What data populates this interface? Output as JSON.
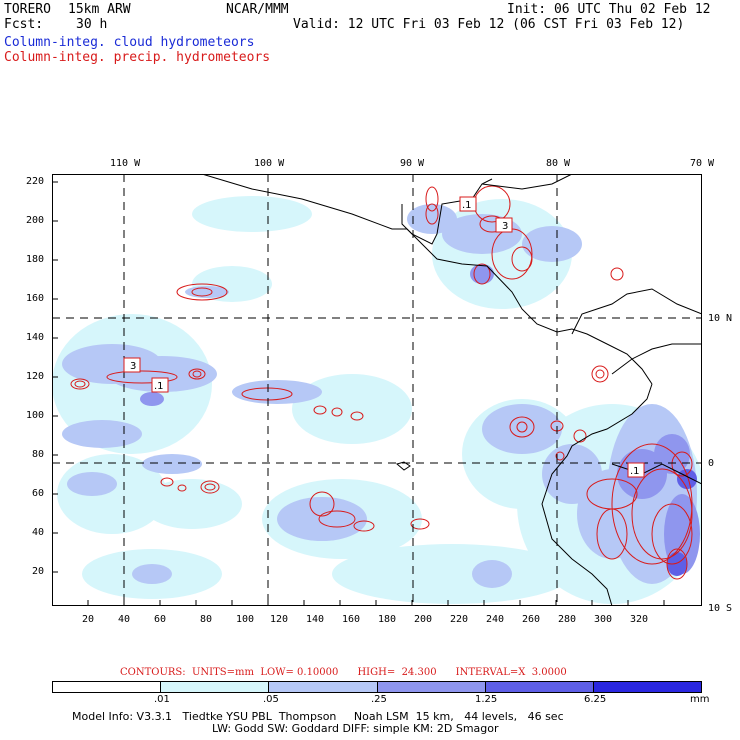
{
  "header": {
    "run_name": "TORERO",
    "model": "15km ARW",
    "org": "NCAR/MMM",
    "init": "Init: 06 UTC Thu 02 Feb 12",
    "fcst_label": "Fcst:",
    "fcst_value": "30 h",
    "valid": "Valid: 12 UTC Fri 03 Feb 12 (06 CST Fri 03 Feb 12)",
    "field_cloud": "Column-integ. cloud hydrometeors",
    "field_precip": "Column-integ. precip. hydrometeors"
  },
  "map": {
    "top_lon_labels": [
      "110 W",
      "100 W",
      "90 W",
      "80 W",
      "70 W"
    ],
    "right_lat_labels": [
      "10 N",
      "0",
      "10 S"
    ],
    "left_y_ticks": [
      "220",
      "200",
      "180",
      "160",
      "140",
      "120",
      "100",
      "80",
      "60",
      "40",
      "20"
    ],
    "bottom_x_ticks": [
      "20",
      "40",
      "60",
      "80",
      "100",
      "120",
      "140",
      "160",
      "180",
      "200",
      "220",
      "240",
      "260",
      "280",
      "300",
      "320"
    ],
    "contour_labels": [
      ".1",
      "3",
      ".1",
      "3",
      ".1"
    ]
  },
  "contours_info": "CONTOURS:  UNITS=mm  LOW= 0.10000      HIGH=  24.300      INTERVAL=X  3.0000",
  "legend": {
    "labels": [
      ".01",
      ".05",
      ".25",
      "1.25",
      "6.25",
      "mm"
    ],
    "colors": [
      "#ffffff",
      "#d6f6fb",
      "#b6c8f6",
      "#8f96ee",
      "#5e5fe6",
      "#2a27e0"
    ]
  },
  "model_info": {
    "line1": "Model Info: V3.3.1   Tiedtke YSU PBL  Thompson     Noah LSM  15 km,   44 levels,   46 sec",
    "line2": "LW: Godd SW: Goddard DIFF: simple KM: 2D Smagor"
  }
}
